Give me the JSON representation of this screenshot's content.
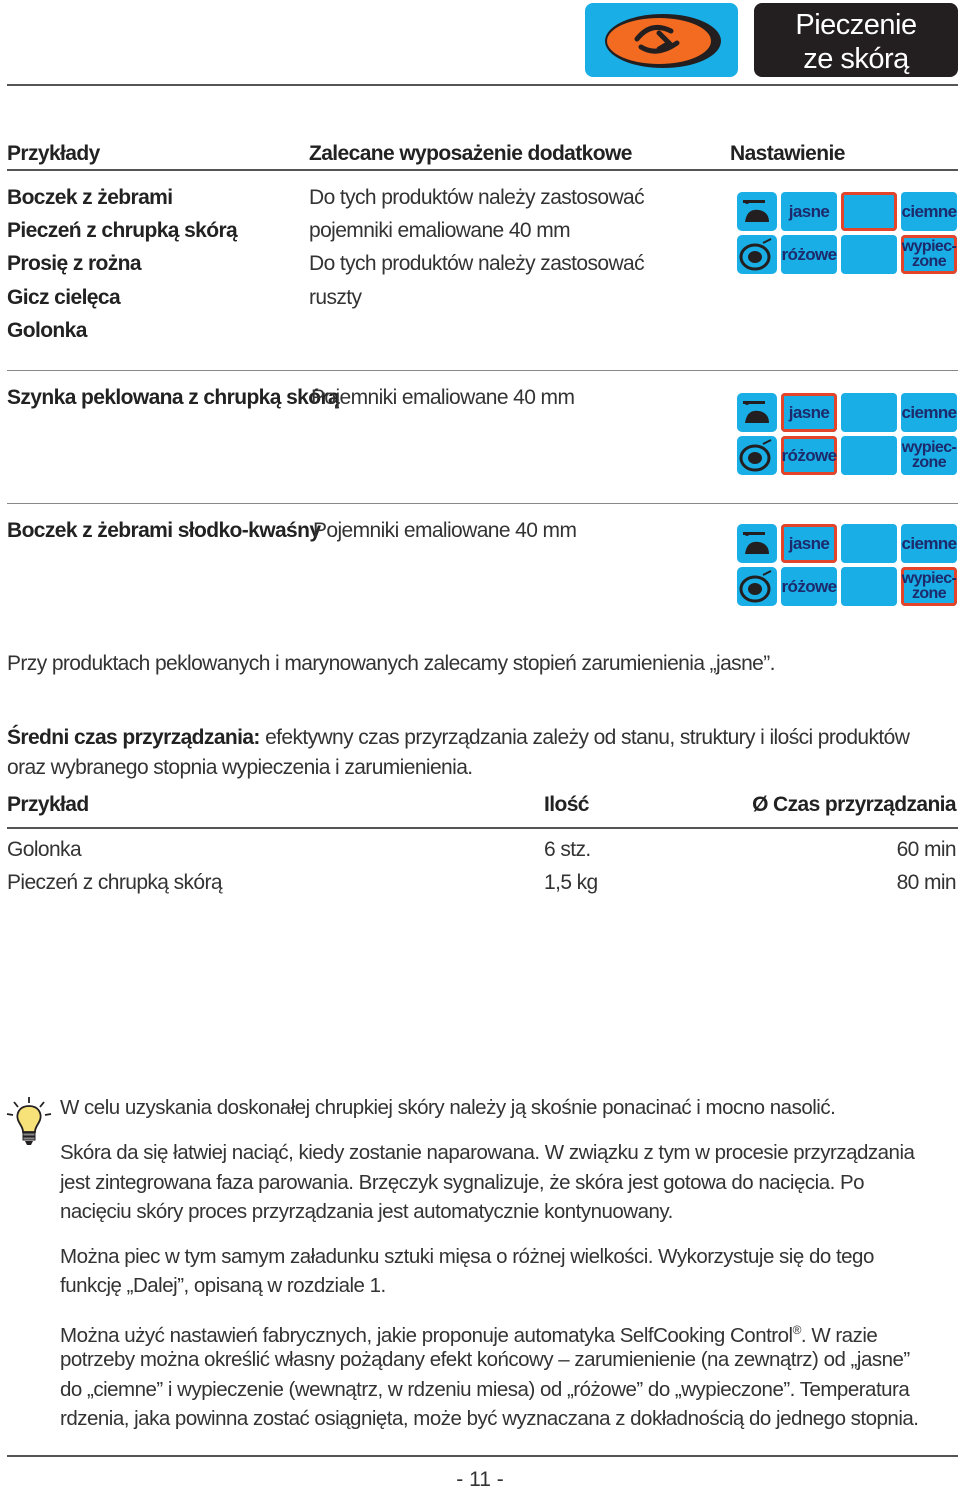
{
  "header": {
    "title_line1": "Pieczenie",
    "title_line2": "ze skórą",
    "logo_icon": "roast-meat-icon",
    "accent_color": "#19aee6",
    "selection_color": "#e4442a"
  },
  "table1": {
    "col_examples": "Przykłady",
    "col_equipment": "Zalecane wyposażenie dodatkowe",
    "col_setting": "Nastawienie",
    "examples": [
      "Boczek z żebrami",
      "Pieczeń z chrupką skórą",
      "Prosię z rożna",
      "Gicz cielęca",
      "Golonka"
    ],
    "equipment": [
      "Do tych produktów należy zastosować",
      "pojemniki emaliowane 40 mm",
      "Do tych produktów należy zastosować",
      "ruszty"
    ]
  },
  "row2": {
    "name": "Szynka peklowana z chrupką skórą",
    "equipment": "Pojemniki emaliowane  40 mm"
  },
  "row3": {
    "name": "Boczek z żebrami słodko-kwaśny",
    "equipment": "Pojemniki emaliowane  40 mm"
  },
  "settings_labels": {
    "jasne": "jasne",
    "ciemne": "ciemne",
    "rozowe": "różowe",
    "wypieczone_1": "wypiec-",
    "wypieczone_2": "zone"
  },
  "note_marinated": "Przy produktach peklowanych i marynowanych zalecamy stopień zarumienienia „jasne”.",
  "avg_time": {
    "label": "Średni czas przyrządzania:",
    "text1": " efektywny czas przyrządzania zależy od stanu, struktury i ilości produktów",
    "text2": "oraz wybranego stopnia wypieczenia i zarumienienia."
  },
  "time_table": {
    "headers": [
      "Przykład",
      "Ilość",
      "Ø Czas przyrządzania"
    ],
    "rows": [
      [
        "Golonka",
        "6 stz.",
        "60 min"
      ],
      [
        "Pieczeń z chrupką skórą",
        "1,5 kg",
        "80 min"
      ]
    ]
  },
  "tips": {
    "icon": "lightbulb-icon",
    "p1": "W celu uzyskania doskonałej chrupkiej skóry należy ją skośnie ponacinać i mocno nasolić.",
    "p2_l1": "Skóra da się łatwiej naciąć, kiedy zostanie naparowana. W związku z tym w procesie przyrządzania",
    "p2_l2": "jest zintegrowana faza parowania. Brzęczyk sygnalizuje, że skóra jest gotowa do nacięcia. Po",
    "p2_l3": "nacięciu skóry proces przyrządzania jest automatycznie kontynuowany.",
    "p3_l1": "Można piec w tym samym załadunku sztuki mięsa o różnej wielkości. Wykorzystuje się do tego",
    "p3_l2": "funkcję „Dalej”, opisaną w rozdziale 1.",
    "p4_l1a": "Można użyć nastawień fabrycznych, jakie proponuje automatyka SelfCooking Control",
    "p4_l1_reg": "®",
    "p4_l1b": ". W razie",
    "p4_l2": "potrzeby można określić własny pożądany efekt końcowy – zarumienienie (na zewnątrz) od „jasne”",
    "p4_l3": "do „ciemne” i wypieczenie (wewnątrz, w rdzeniu miesa) od „różowe” do „wypieczone”. Temperatura",
    "p4_l4": "rdzenia, jaka powinna zostać osiągnięta, może być wyznaczana z dokładnością do jednego stopnia."
  },
  "page_number": "- 11 -"
}
